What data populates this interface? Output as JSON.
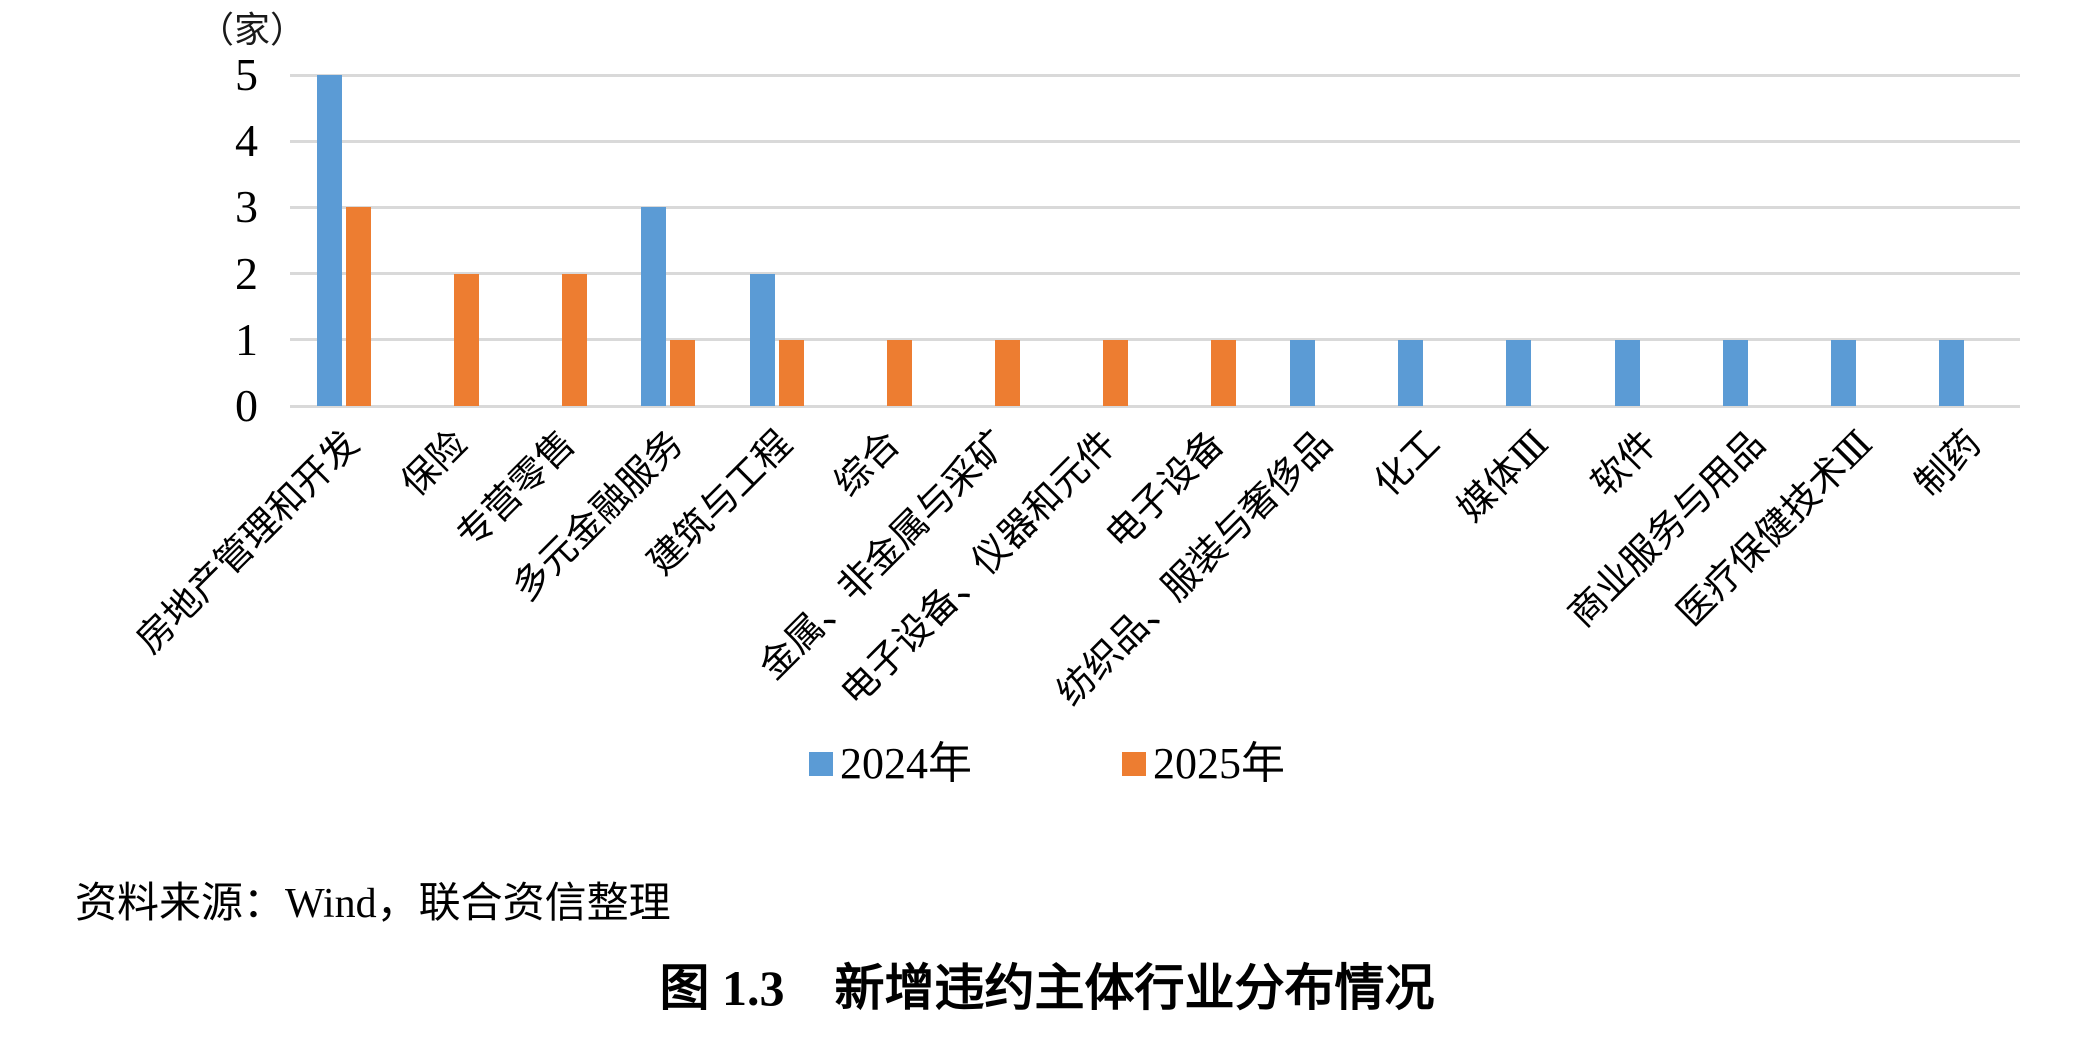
{
  "chart_data": {
    "type": "bar",
    "unit_label": "（家）",
    "categories": [
      "房地产管理和开发",
      "保险",
      "专营零售",
      "多元金融服务",
      "建筑与工程",
      "综合",
      "金属、非金属与采矿",
      "电子设备、仪器和元件",
      "电子设备",
      "纺织品、服装与奢侈品",
      "化工",
      "媒体Ⅲ",
      "软件",
      "商业服务与用品",
      "医疗保健技术Ⅲ",
      "制药"
    ],
    "series": [
      {
        "name": "2024年",
        "color": "#5B9BD5",
        "values": [
          5,
          0,
          0,
          3,
          2,
          0,
          0,
          0,
          0,
          1,
          1,
          1,
          1,
          1,
          1,
          1
        ]
      },
      {
        "name": "2025年",
        "color": "#ED7D31",
        "values": [
          3,
          2,
          2,
          1,
          1,
          1,
          1,
          1,
          1,
          0,
          0,
          0,
          0,
          0,
          0,
          0
        ]
      }
    ],
    "ylim": [
      0,
      5
    ],
    "yticks": [
      0,
      1,
      2,
      3,
      4,
      5
    ],
    "xlabel": "",
    "ylabel": "",
    "grid": "horizontal",
    "gridline_color": "#D9D9D9",
    "legend_position": "bottom-center",
    "x_label_rotation_deg": 45
  },
  "source_text": "资料来源：Wind，联合资信整理",
  "caption_text": "图 1.3　新增违约主体行业分布情况"
}
